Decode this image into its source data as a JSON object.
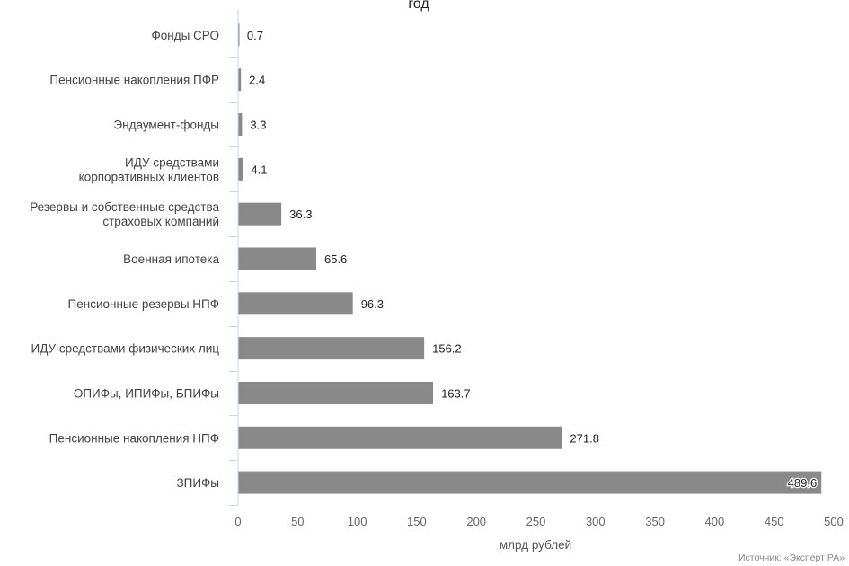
{
  "chart_data": {
    "type": "bar",
    "orientation": "horizontal",
    "title": "год",
    "xlabel": "млрд рублей",
    "ylabel": "",
    "xlim": [
      0,
      500
    ],
    "xticks": [
      0,
      50,
      100,
      150,
      200,
      250,
      300,
      350,
      400,
      450,
      500
    ],
    "grid": false,
    "categories": [
      [
        "Фонды СРО"
      ],
      [
        "Пенсионные накопления ПФР"
      ],
      [
        "Эндаумент-фонды"
      ],
      [
        "ИДУ средствами",
        "корпоративных клиентов"
      ],
      [
        "Резервы и собственные средства",
        "страховых компаний"
      ],
      [
        "Военная ипотека"
      ],
      [
        "Пенсионные резервы НПФ"
      ],
      [
        "ИДУ средствами физических лиц"
      ],
      [
        "ОПИФы, ИПИФы, БПИФы"
      ],
      [
        "Пенсионные накопления НПФ"
      ],
      [
        "ЗПИФы"
      ]
    ],
    "values": [
      0.7,
      2.4,
      3.3,
      4.1,
      36.3,
      65.6,
      96.3,
      156.2,
      163.7,
      271.8,
      489.6
    ],
    "value_labels": [
      "0.7",
      "2.4",
      "3.3",
      "4.1",
      "36.3",
      "65.6",
      "96.3",
      "156.2",
      "163.7",
      "271.8",
      "489.6"
    ],
    "bar_color": "#898989",
    "axis_color": "#ccd6eb",
    "source": "Источник: «Эксперт РА»"
  }
}
